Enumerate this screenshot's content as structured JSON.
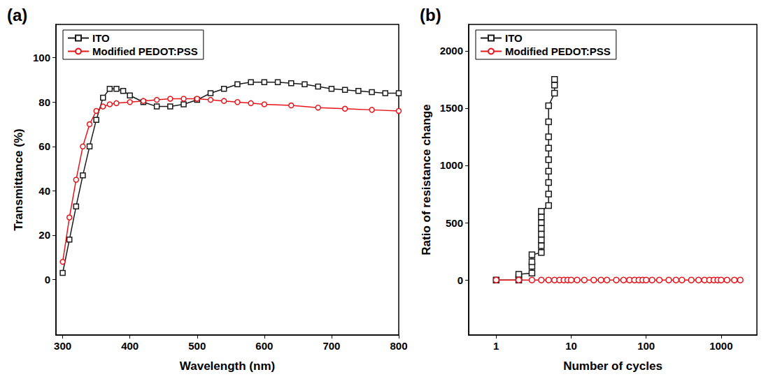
{
  "chart_data": [
    {
      "type": "line",
      "title": "(a)",
      "x_label": "Wavelength (nm)",
      "y_label": "Transmittance (%)",
      "xlim": [
        290,
        800
      ],
      "xticks": [
        300,
        400,
        500,
        600,
        700,
        800
      ],
      "ylim": [
        -25,
        115
      ],
      "yticks": [
        0,
        20,
        40,
        60,
        80,
        100
      ],
      "grid": false,
      "legend": "upper left",
      "series": [
        {
          "name": "ITO",
          "color": "#1a1a1a",
          "marker": "square",
          "line_style": "solid",
          "x": [
            300,
            310,
            320,
            330,
            340,
            350,
            360,
            370,
            380,
            390,
            400,
            420,
            440,
            460,
            480,
            500,
            520,
            540,
            560,
            580,
            600,
            620,
            640,
            660,
            680,
            700,
            720,
            740,
            760,
            780,
            800
          ],
          "values": [
            3,
            18,
            33,
            47,
            60,
            72,
            82,
            86,
            86,
            85,
            83,
            80,
            78,
            78,
            79,
            81,
            84,
            86,
            88,
            89,
            89,
            89,
            88.5,
            88,
            87,
            86,
            85.5,
            85,
            84.5,
            84,
            84
          ]
        },
        {
          "name": "Modified PEDOT:PSS",
          "color": "#e8141b",
          "marker": "circle",
          "line_style": "solid",
          "x": [
            300,
            310,
            320,
            330,
            340,
            350,
            360,
            370,
            380,
            400,
            420,
            440,
            460,
            480,
            500,
            520,
            540,
            560,
            580,
            600,
            640,
            680,
            720,
            760,
            800
          ],
          "values": [
            8,
            28,
            45,
            60,
            70,
            76,
            78,
            79,
            79.5,
            80,
            80.5,
            81,
            81.5,
            81.5,
            81.5,
            81,
            80.5,
            80,
            79.5,
            79,
            78.5,
            77.5,
            77,
            76.5,
            76
          ]
        }
      ]
    },
    {
      "type": "line",
      "title": "(b)",
      "x_label": "Number of cycles",
      "y_label": "Ratio of resistance change",
      "log": "x",
      "xlim": [
        0.43,
        3000
      ],
      "xticks": [
        1,
        10,
        100,
        1000
      ],
      "ylim": [
        -480,
        2230
      ],
      "yticks": [
        0,
        500,
        1000,
        1500,
        2000
      ],
      "grid": false,
      "legend": "upper left",
      "series": [
        {
          "name": "ITO",
          "color": "#1a1a1a",
          "marker": "square",
          "line_style": "solid",
          "x": [
            1,
            2,
            2,
            2,
            3,
            3,
            3,
            3,
            4,
            4,
            4,
            4,
            4,
            4,
            4,
            4,
            5,
            5,
            5,
            5,
            5,
            5,
            5,
            5,
            5,
            6,
            6,
            6
          ],
          "values": [
            0,
            0,
            20,
            50,
            60,
            120,
            160,
            220,
            240,
            300,
            350,
            400,
            450,
            500,
            550,
            600,
            650,
            750,
            850,
            950,
            1050,
            1150,
            1250,
            1380,
            1520,
            1630,
            1700,
            1750
          ]
        },
        {
          "name": "Modified PEDOT:PSS",
          "color": "#e8141b",
          "marker": "circle",
          "line_style": "solid",
          "x": [
            1,
            2,
            3,
            4,
            5,
            6,
            7,
            8,
            9,
            10,
            12,
            15,
            20,
            25,
            30,
            40,
            50,
            60,
            70,
            80,
            90,
            100,
            120,
            150,
            200,
            250,
            300,
            400,
            500,
            600,
            700,
            800,
            900,
            1000,
            1200,
            1500,
            1800
          ],
          "values": [
            0,
            0,
            0,
            0,
            0,
            0,
            0,
            0,
            0,
            0,
            0,
            0,
            0,
            0,
            0,
            0,
            0,
            0,
            0,
            0,
            0,
            0,
            0,
            0,
            0,
            0,
            0,
            0,
            0,
            0,
            0,
            0,
            0,
            0,
            0,
            0,
            0
          ]
        }
      ]
    }
  ]
}
